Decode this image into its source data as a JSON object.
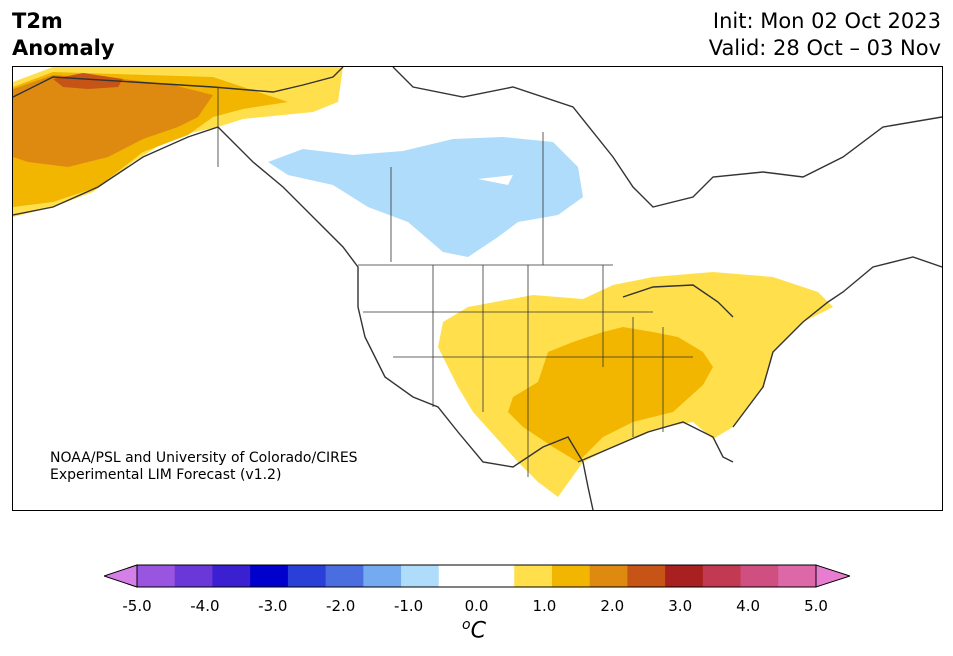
{
  "header": {
    "title_line1": "T2m",
    "title_line2": "Anomaly",
    "init_text": "Init: Mon 02 Oct 2023",
    "valid_text": "Valid: 28 Oct – 03 Nov"
  },
  "credit": {
    "line1": "NOAA/PSL and University of Colorado/CIRES",
    "line2": "Experimental LIM Forecast (v1.2)"
  },
  "colorbar": {
    "unit_base": "C",
    "unit_sup": "o",
    "colors": [
      "#d580e8",
      "#9a55e0",
      "#6a38d8",
      "#3a20d0",
      "#0000cc",
      "#2a3ed8",
      "#4a6ee0",
      "#74aaf0",
      "#aedcfa",
      "#ffffff",
      "#ffffff",
      "#ffe04c",
      "#f2b600",
      "#de8a10",
      "#c55416",
      "#a82020",
      "#c23a52",
      "#cf5080",
      "#dc68a8",
      "#e87cd0"
    ],
    "tick_labels": [
      "-5.0",
      "-4.0",
      "-3.0",
      "-2.0",
      "-1.0",
      "0.0",
      "1.0",
      "2.0",
      "3.0",
      "4.0",
      "5.0"
    ]
  },
  "map": {
    "anomaly_colors": {
      "negative_light": "#aedcfa",
      "positive_light": "#ffe04c",
      "positive_mid": "#f2b600",
      "positive_high": "#de8a10",
      "positive_peak": "#c55416"
    }
  }
}
